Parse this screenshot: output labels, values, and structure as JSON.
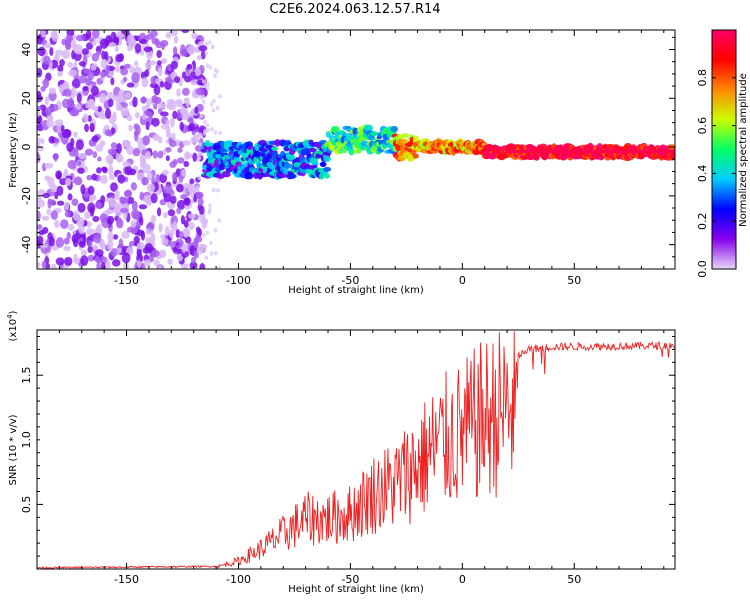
{
  "chart_data": [
    {
      "type": "heatmap",
      "title": "C2E6.2024.063.12.57.R14",
      "xlabel": "Height of straight line (km)",
      "ylabel": "Frequency (Hz)",
      "xlim": [
        -190,
        95
      ],
      "ylim": [
        -50,
        48
      ],
      "x_ticks": [
        -150,
        -100,
        -50,
        0,
        50
      ],
      "y_ticks": [
        -40,
        -20,
        0,
        20,
        40
      ],
      "colorbar": {
        "label": "Normalized spectral amplitude",
        "range": [
          0,
          1
        ],
        "ticks": [
          0.0,
          0.2,
          0.4,
          0.6,
          0.8
        ],
        "colors": [
          "#e8d8f8",
          "#8800ee",
          "#0000ff",
          "#00ccff",
          "#00ff66",
          "#ccff00",
          "#ff8800",
          "#ff0000",
          "#ff0066"
        ]
      },
      "features": [
        {
          "region": "noise",
          "x_range": [
            -190,
            -115
          ],
          "amplitude": 0.05
        },
        {
          "region": "signal-onset",
          "x_range": [
            -115,
            -60
          ],
          "center_freq": -5,
          "amplitude": 0.3
        },
        {
          "region": "signal-rising",
          "x_range": [
            -60,
            -30
          ],
          "center_freq": 3,
          "amplitude": 0.45
        },
        {
          "region": "signal-strong",
          "x_range": [
            -30,
            10
          ],
          "center_freq": 0,
          "amplitude": 0.75
        },
        {
          "region": "signal-stable",
          "x_range": [
            10,
            95
          ],
          "center_freq": -2,
          "amplitude": 0.95
        }
      ]
    },
    {
      "type": "line",
      "xlabel": "Height of straight line (km)",
      "ylabel": "SNR (10 * v/v)",
      "y_multiplier": "(x10",
      "y_exponent": "4",
      "y_exponent_close": ")",
      "xlim": [
        -190,
        95
      ],
      "ylim": [
        0,
        1.85
      ],
      "x_ticks": [
        -150,
        -100,
        -50,
        0,
        50
      ],
      "y_ticks": [
        0.5,
        1.0,
        1.5
      ],
      "y_tick_labels": [
        "0.5",
        "1.0",
        "1.5"
      ],
      "series_color": "#ee2222",
      "envelope": [
        {
          "x": -190,
          "y": 0.01
        },
        {
          "x": -110,
          "y": 0.02
        },
        {
          "x": -100,
          "y": 0.08
        },
        {
          "x": -90,
          "y": 0.2
        },
        {
          "x": -80,
          "y": 0.35
        },
        {
          "x": -70,
          "y": 0.5
        },
        {
          "x": -60,
          "y": 0.5
        },
        {
          "x": -50,
          "y": 0.55
        },
        {
          "x": -40,
          "y": 0.75
        },
        {
          "x": -30,
          "y": 0.85
        },
        {
          "x": -20,
          "y": 1.05
        },
        {
          "x": -10,
          "y": 1.25
        },
        {
          "x": 0,
          "y": 1.35
        },
        {
          "x": 10,
          "y": 1.5
        },
        {
          "x": 20,
          "y": 1.6
        },
        {
          "x": 30,
          "y": 1.7
        },
        {
          "x": 40,
          "y": 1.72
        },
        {
          "x": 95,
          "y": 1.73
        }
      ]
    }
  ]
}
